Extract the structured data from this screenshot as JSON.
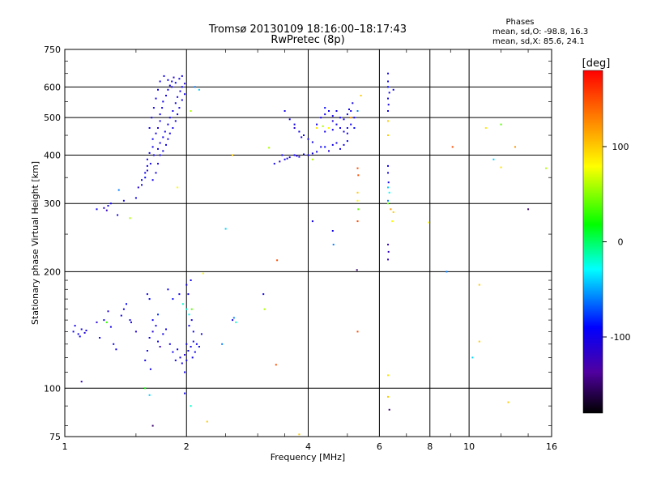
{
  "chart_data": {
    "type": "scatter",
    "title": "Tromsø 20130109 18:16:00–18:17:43",
    "subtitle": "RwPretec (8p)",
    "xlabel": "Frequency [MHz]",
    "ylabel": "Stationary phase Virtual Height [km]",
    "xscale": "log",
    "yscale": "log",
    "xlim": [
      1,
      16
    ],
    "ylim": [
      75,
      750
    ],
    "xticks": [
      1,
      2,
      4,
      6,
      8,
      10,
      16
    ],
    "yticks": [
      75,
      100,
      200,
      300,
      400,
      500,
      600,
      750
    ],
    "grid": true,
    "phase_info": {
      "title": "Phases",
      "line1": "mean, sd,O: -98.8, 16.3",
      "line2": "mean, sd,X:  85.6, 24.1"
    },
    "colorbar": {
      "label": "[deg]",
      "range": [
        -180,
        180
      ],
      "ticks": [
        100,
        0,
        -100
      ],
      "colors": [
        "#000000",
        "#5000a0",
        "#0000ff",
        "#00ffff",
        "#00ff00",
        "#ffff00",
        "#ff8000",
        "#ff0000"
      ]
    },
    "points": [
      [
        1.05,
        140,
        -100
      ],
      [
        1.08,
        138,
        -100
      ],
      [
        1.1,
        142,
        -100
      ],
      [
        1.12,
        139,
        -110
      ],
      [
        1.06,
        145,
        -100
      ],
      [
        1.09,
        136,
        -95
      ],
      [
        1.13,
        141,
        -100
      ],
      [
        1.1,
        104,
        -120
      ],
      [
        1.2,
        148,
        -110
      ],
      [
        1.25,
        150,
        -100
      ],
      [
        1.28,
        158,
        -110
      ],
      [
        1.3,
        144,
        -100
      ],
      [
        1.32,
        130,
        -100
      ],
      [
        1.22,
        135,
        -100
      ],
      [
        1.27,
        148,
        30
      ],
      [
        1.34,
        126,
        -100
      ],
      [
        1.4,
        160,
        -100
      ],
      [
        1.45,
        150,
        -100
      ],
      [
        1.5,
        140,
        -110
      ],
      [
        1.42,
        165,
        -90
      ],
      [
        1.38,
        154,
        -100
      ],
      [
        1.46,
        148,
        -100
      ],
      [
        1.2,
        290,
        -100
      ],
      [
        1.25,
        292,
        -110
      ],
      [
        1.28,
        296,
        -100
      ],
      [
        1.3,
        300,
        -100
      ],
      [
        1.27,
        288,
        -120
      ],
      [
        1.35,
        280,
        -100
      ],
      [
        1.4,
        305,
        -100
      ],
      [
        1.36,
        325,
        -60
      ],
      [
        1.45,
        275,
        60
      ],
      [
        1.5,
        310,
        -100
      ],
      [
        1.52,
        330,
        -110
      ],
      [
        1.55,
        345,
        -100
      ],
      [
        1.58,
        360,
        -100
      ],
      [
        1.6,
        375,
        -100
      ],
      [
        1.6,
        390,
        -100
      ],
      [
        1.62,
        405,
        -100
      ],
      [
        1.65,
        420,
        -100
      ],
      [
        1.65,
        440,
        -100
      ],
      [
        1.68,
        455,
        -100
      ],
      [
        1.7,
        470,
        -110
      ],
      [
        1.72,
        490,
        -100
      ],
      [
        1.72,
        510,
        -100
      ],
      [
        1.74,
        530,
        -100
      ],
      [
        1.75,
        550,
        -100
      ],
      [
        1.78,
        570,
        -100
      ],
      [
        1.8,
        590,
        -100
      ],
      [
        1.82,
        605,
        -100
      ],
      [
        1.84,
        620,
        -100
      ],
      [
        1.86,
        635,
        -110
      ],
      [
        1.55,
        335,
        -100
      ],
      [
        1.58,
        350,
        -90
      ],
      [
        1.6,
        365,
        -110
      ],
      [
        1.63,
        380,
        -100
      ],
      [
        1.66,
        400,
        -100
      ],
      [
        1.7,
        415,
        -100
      ],
      [
        1.72,
        430,
        -100
      ],
      [
        1.75,
        445,
        -100
      ],
      [
        1.77,
        460,
        -100
      ],
      [
        1.8,
        480,
        -100
      ],
      [
        1.82,
        500,
        -100
      ],
      [
        1.85,
        520,
        -100
      ],
      [
        1.88,
        545,
        -100
      ],
      [
        1.9,
        565,
        -100
      ],
      [
        1.93,
        585,
        -100
      ],
      [
        1.95,
        600,
        -100
      ],
      [
        1.65,
        345,
        -100
      ],
      [
        1.68,
        360,
        -100
      ],
      [
        1.7,
        380,
        -100
      ],
      [
        1.72,
        400,
        -100
      ],
      [
        1.75,
        410,
        -100
      ],
      [
        1.78,
        425,
        -100
      ],
      [
        1.8,
        440,
        -100
      ],
      [
        1.82,
        455,
        -100
      ],
      [
        1.85,
        470,
        -100
      ],
      [
        1.88,
        490,
        -100
      ],
      [
        1.9,
        510,
        -100
      ],
      [
        1.92,
        530,
        -100
      ],
      [
        1.95,
        555,
        -100
      ],
      [
        1.98,
        575,
        -100
      ],
      [
        1.62,
        470,
        -100
      ],
      [
        1.64,
        500,
        -100
      ],
      [
        1.66,
        530,
        -100
      ],
      [
        1.68,
        560,
        -100
      ],
      [
        1.7,
        590,
        -100
      ],
      [
        1.72,
        620,
        -100
      ],
      [
        1.76,
        640,
        -100
      ],
      [
        1.8,
        625,
        -100
      ],
      [
        1.84,
        600,
        -100
      ],
      [
        1.88,
        615,
        -90
      ],
      [
        1.92,
        630,
        -100
      ],
      [
        1.95,
        640,
        -100
      ],
      [
        1.98,
        612,
        -110
      ],
      [
        2.05,
        520,
        60
      ],
      [
        2.1,
        600,
        -60
      ],
      [
        2.15,
        590,
        -40
      ],
      [
        1.9,
        330,
        80
      ],
      [
        1.62,
        135,
        -100
      ],
      [
        1.65,
        140,
        -110
      ],
      [
        1.68,
        145,
        -100
      ],
      [
        1.7,
        132,
        -100
      ],
      [
        1.72,
        128,
        -120
      ],
      [
        1.75,
        138,
        -100
      ],
      [
        1.6,
        125,
        -100
      ],
      [
        1.58,
        118,
        -100
      ],
      [
        1.63,
        112,
        -100
      ],
      [
        1.78,
        142,
        -100
      ],
      [
        1.82,
        130,
        -100
      ],
      [
        1.85,
        124,
        -100
      ],
      [
        1.88,
        118,
        -100
      ],
      [
        1.9,
        126,
        -100
      ],
      [
        1.93,
        120,
        -100
      ],
      [
        1.95,
        116,
        -100
      ],
      [
        1.98,
        110,
        -100
      ],
      [
        1.6,
        175,
        -100
      ],
      [
        1.62,
        170,
        -90
      ],
      [
        1.65,
        150,
        -100
      ],
      [
        1.7,
        155,
        -80
      ],
      [
        1.8,
        180,
        -100
      ],
      [
        1.85,
        170,
        -90
      ],
      [
        1.92,
        175,
        -100
      ],
      [
        1.96,
        165,
        -20
      ],
      [
        2.0,
        185,
        -100
      ],
      [
        2.02,
        175,
        -100
      ],
      [
        2.05,
        190,
        -100
      ],
      [
        2.0,
        160,
        -20
      ],
      [
        2.03,
        155,
        -30
      ],
      [
        2.06,
        150,
        -100
      ],
      [
        2.08,
        140,
        -100
      ],
      [
        2.0,
        130,
        -100
      ],
      [
        2.02,
        125,
        -100
      ],
      [
        2.05,
        128,
        -100
      ],
      [
        2.08,
        132,
        -100
      ],
      [
        2.1,
        124,
        -100
      ],
      [
        2.12,
        130,
        -100
      ],
      [
        2.15,
        128,
        -90
      ],
      [
        2.18,
        138,
        -100
      ],
      [
        2.07,
        120,
        -100
      ],
      [
        1.98,
        122,
        -110
      ],
      [
        2.0,
        118,
        -100
      ],
      [
        2.03,
        145,
        -100
      ],
      [
        2.06,
        160,
        40
      ],
      [
        1.58,
        100,
        20
      ],
      [
        1.62,
        96,
        -40
      ],
      [
        1.65,
        80,
        -150
      ],
      [
        1.98,
        97,
        -100
      ],
      [
        2.05,
        90,
        -20
      ],
      [
        2.25,
        82,
        100
      ],
      [
        2.2,
        198,
        80
      ],
      [
        2.5,
        258,
        -40
      ],
      [
        2.6,
        150,
        -100
      ],
      [
        2.62,
        152,
        -60
      ],
      [
        2.65,
        148,
        -20
      ],
      [
        2.45,
        130,
        -60
      ],
      [
        3.1,
        175,
        -100
      ],
      [
        3.12,
        160,
        60
      ],
      [
        3.35,
        214,
        150
      ],
      [
        3.33,
        115,
        150
      ],
      [
        2.6,
        400,
        100
      ],
      [
        3.2,
        418,
        60
      ],
      [
        3.8,
        76,
        100
      ],
      [
        3.3,
        380,
        -100
      ],
      [
        3.4,
        385,
        -110
      ],
      [
        3.5,
        390,
        -100
      ],
      [
        3.6,
        395,
        -100
      ],
      [
        3.7,
        400,
        -100
      ],
      [
        3.75,
        398,
        -110
      ],
      [
        3.8,
        396,
        -100
      ],
      [
        3.9,
        402,
        -100
      ],
      [
        4.0,
        400,
        -100
      ],
      [
        4.1,
        404,
        -100
      ],
      [
        4.2,
        408,
        -100
      ],
      [
        3.45,
        400,
        -100
      ],
      [
        3.55,
        392,
        -100
      ],
      [
        3.5,
        520,
        -100
      ],
      [
        3.6,
        495,
        -100
      ],
      [
        3.7,
        480,
        -100
      ],
      [
        3.8,
        460,
        -100
      ],
      [
        3.9,
        450,
        -100
      ],
      [
        4.0,
        440,
        -100
      ],
      [
        3.7,
        470,
        -110
      ],
      [
        3.85,
        445,
        -100
      ],
      [
        4.1,
        432,
        -100
      ],
      [
        4.2,
        480,
        -100
      ],
      [
        4.3,
        500,
        -100
      ],
      [
        4.4,
        510,
        -100
      ],
      [
        4.5,
        520,
        -100
      ],
      [
        4.6,
        505,
        -100
      ],
      [
        4.7,
        520,
        -100
      ],
      [
        4.8,
        500,
        -100
      ],
      [
        4.9,
        495,
        -100
      ],
      [
        5.0,
        510,
        -100
      ],
      [
        5.1,
        520,
        -100
      ],
      [
        5.2,
        500,
        -100
      ],
      [
        4.4,
        530,
        -90
      ],
      [
        4.6,
        490,
        -110
      ],
      [
        4.4,
        460,
        -100
      ],
      [
        4.5,
        470,
        -100
      ],
      [
        4.6,
        465,
        -100
      ],
      [
        4.7,
        480,
        -100
      ],
      [
        4.8,
        470,
        -100
      ],
      [
        4.9,
        460,
        -100
      ],
      [
        5.0,
        470,
        -100
      ],
      [
        5.1,
        480,
        -100
      ],
      [
        5.2,
        470,
        -90
      ],
      [
        5.0,
        455,
        -100
      ],
      [
        5.05,
        525,
        -100
      ],
      [
        5.15,
        545,
        -100
      ],
      [
        4.3,
        420,
        -100
      ],
      [
        4.4,
        420,
        -90
      ],
      [
        4.5,
        410,
        -110
      ],
      [
        4.6,
        425,
        -100
      ],
      [
        4.7,
        430,
        -100
      ],
      [
        4.8,
        415,
        -100
      ],
      [
        4.9,
        425,
        -100
      ],
      [
        5.0,
        435,
        -90
      ],
      [
        4.35,
        475,
        60
      ],
      [
        4.5,
        470,
        80
      ],
      [
        4.1,
        390,
        60
      ],
      [
        4.2,
        470,
        90
      ],
      [
        5.1,
        500,
        120
      ],
      [
        5.3,
        520,
        -60
      ],
      [
        5.4,
        570,
        100
      ],
      [
        5.3,
        370,
        150
      ],
      [
        5.32,
        355,
        150
      ],
      [
        5.3,
        320,
        100
      ],
      [
        5.3,
        305,
        80
      ],
      [
        5.32,
        290,
        40
      ],
      [
        5.3,
        270,
        150
      ],
      [
        5.28,
        202,
        -150
      ],
      [
        5.3,
        140,
        150
      ],
      [
        4.6,
        255,
        -100
      ],
      [
        4.62,
        235,
        -60
      ],
      [
        4.1,
        270,
        -100
      ],
      [
        6.3,
        650,
        -100
      ],
      [
        6.3,
        620,
        -100
      ],
      [
        6.3,
        600,
        -90
      ],
      [
        6.35,
        580,
        -100
      ],
      [
        6.3,
        560,
        -100
      ],
      [
        6.32,
        540,
        -100
      ],
      [
        6.3,
        520,
        -100
      ],
      [
        6.3,
        490,
        100
      ],
      [
        6.3,
        450,
        100
      ],
      [
        6.3,
        375,
        -100
      ],
      [
        6.3,
        360,
        -100
      ],
      [
        6.32,
        340,
        -100
      ],
      [
        6.3,
        330,
        -40
      ],
      [
        6.35,
        320,
        -30
      ],
      [
        6.3,
        305,
        -60
      ],
      [
        6.3,
        300,
        40
      ],
      [
        6.4,
        290,
        120
      ],
      [
        6.5,
        285,
        100
      ],
      [
        6.45,
        270,
        80
      ],
      [
        6.3,
        235,
        -120
      ],
      [
        6.32,
        225,
        -120
      ],
      [
        6.3,
        215,
        -120
      ],
      [
        6.3,
        108,
        90
      ],
      [
        6.3,
        95,
        100
      ],
      [
        6.35,
        88,
        -150
      ],
      [
        6.5,
        590,
        -100
      ],
      [
        7.95,
        268,
        80
      ],
      [
        8.8,
        200,
        -60
      ],
      [
        9.1,
        420,
        150
      ],
      [
        10.2,
        120,
        -40
      ],
      [
        10.6,
        185,
        100
      ],
      [
        10.6,
        132,
        100
      ],
      [
        11.0,
        470,
        90
      ],
      [
        11.5,
        390,
        -40
      ],
      [
        12.0,
        480,
        40
      ],
      [
        12.0,
        372,
        90
      ],
      [
        12.5,
        92,
        100
      ],
      [
        13.0,
        420,
        120
      ],
      [
        14.0,
        290,
        -150
      ],
      [
        15.5,
        370,
        60
      ]
    ]
  }
}
